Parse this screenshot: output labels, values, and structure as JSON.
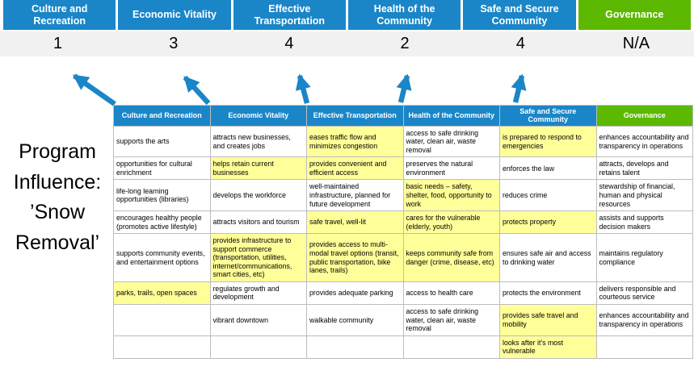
{
  "program_label": "Program Influence: ’Snow Removal’",
  "categories": [
    {
      "label": "Culture and Recreation",
      "score": "1",
      "theme": "blue"
    },
    {
      "label": "Economic Vitality",
      "score": "3",
      "theme": "blue"
    },
    {
      "label": "Effective Transportation",
      "score": "4",
      "theme": "blue"
    },
    {
      "label": "Health of the Community",
      "score": "2",
      "theme": "blue"
    },
    {
      "label": "Safe and Secure Community",
      "score": "4",
      "theme": "blue"
    },
    {
      "label": "Governance",
      "score": "N/A",
      "theme": "green"
    }
  ],
  "table": {
    "headers": [
      {
        "label": "Culture and Recreation",
        "theme": "blue"
      },
      {
        "label": "Economic Vitality",
        "theme": "blue"
      },
      {
        "label": "Effective Transportation",
        "theme": "blue"
      },
      {
        "label": "Health of the Community",
        "theme": "blue"
      },
      {
        "label": "Safe and Secure Community",
        "theme": "blue"
      },
      {
        "label": "Governance",
        "theme": "green"
      }
    ],
    "rows": [
      [
        {
          "text": "supports the arts",
          "hl": false
        },
        {
          "text": "attracts new businesses, and creates jobs",
          "hl": false
        },
        {
          "text": "eases traffic flow and minimizes congestion",
          "hl": true
        },
        {
          "text": "access to safe drinking water, clean air, waste removal",
          "hl": false
        },
        {
          "text": "is prepared to respond to emergencies",
          "hl": true
        },
        {
          "text": "enhances accountability and transparency in operations",
          "hl": false
        }
      ],
      [
        {
          "text": "opportunities for cultural enrichment",
          "hl": false
        },
        {
          "text": "helps retain current businesses",
          "hl": true
        },
        {
          "text": "provides convenient and efficient access",
          "hl": true
        },
        {
          "text": "preserves the natural environment",
          "hl": false
        },
        {
          "text": "enforces the law",
          "hl": false
        },
        {
          "text": "attracts, develops and retains talent",
          "hl": false
        }
      ],
      [
        {
          "text": "life-long learning opportunities (libraries)",
          "hl": false
        },
        {
          "text": "develops the workforce",
          "hl": false
        },
        {
          "text": "well-maintained infrastructure, planned for future development",
          "hl": false
        },
        {
          "text": "basic needs – safety, shelter, food, opportunity to work",
          "hl": true
        },
        {
          "text": "reduces crime",
          "hl": false
        },
        {
          "text": "stewardship of financial, human and physical resources",
          "hl": false
        }
      ],
      [
        {
          "text": "encourages healthy people (promotes active lifestyle)",
          "hl": false
        },
        {
          "text": "attracts visitors and tourism",
          "hl": false
        },
        {
          "text": "safe travel, well-lit",
          "hl": true
        },
        {
          "text": "cares for the vulnerable (elderly, youth)",
          "hl": true
        },
        {
          "text": "protects property",
          "hl": true
        },
        {
          "text": "assists and supports decision makers",
          "hl": false
        }
      ],
      [
        {
          "text": "supports community events, and entertainment options",
          "hl": false
        },
        {
          "text": "provides infrastructure to support commerce (transportation, utilities, internet/communications, smart cities, etc)",
          "hl": true
        },
        {
          "text": "provides access to multi-modal travel options (transit, public transportation, bike lanes, trails)",
          "hl": true
        },
        {
          "text": "keeps community safe from danger (crime, disease, etc)",
          "hl": true
        },
        {
          "text": "ensures safe air and access to drinking water",
          "hl": false
        },
        {
          "text": "maintains regulatory compliance",
          "hl": false
        }
      ],
      [
        {
          "text": "parks, trails, open spaces",
          "hl": true
        },
        {
          "text": "regulates growth and development",
          "hl": false
        },
        {
          "text": "provides adequate parking",
          "hl": false
        },
        {
          "text": "access to health care",
          "hl": false
        },
        {
          "text": "protects the environment",
          "hl": false
        },
        {
          "text": "delivers responsible and courteous service",
          "hl": false
        }
      ],
      [
        {
          "text": "",
          "hl": false
        },
        {
          "text": "vibrant downtown",
          "hl": false
        },
        {
          "text": "walkable community",
          "hl": false
        },
        {
          "text": "access to safe drinking water, clean air, waste removal",
          "hl": false
        },
        {
          "text": "provides safe travel and mobility",
          "hl": true
        },
        {
          "text": "enhances accountability and transparency in operations",
          "hl": false
        }
      ],
      [
        {
          "text": "",
          "hl": false
        },
        {
          "text": "",
          "hl": false
        },
        {
          "text": "",
          "hl": false
        },
        {
          "text": "",
          "hl": false
        },
        {
          "text": "looks after it's most vulnerable",
          "hl": true
        },
        {
          "text": "",
          "hl": false
        }
      ]
    ]
  },
  "colors": {
    "header_blue": "#1a86c8",
    "header_green": "#5cb800",
    "highlight_yellow": "#ffff99",
    "score_band_bg": "#f1f1f1",
    "arrow_blue": "#1a86c8"
  }
}
